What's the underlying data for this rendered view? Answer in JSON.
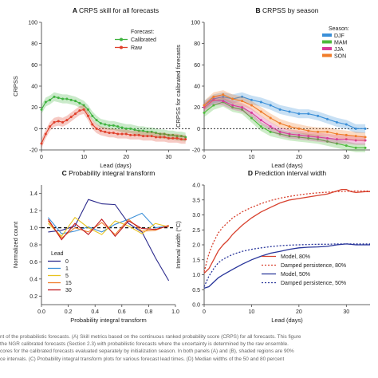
{
  "chart_data": [
    {
      "type": "line",
      "panel_letter": "A",
      "title": "CRPS skill for all forecasts",
      "xlabel": "Lead (days)",
      "ylabel": "CRPSS",
      "xlim": [
        0,
        35
      ],
      "ylim": [
        -20,
        100
      ],
      "xticks": [
        0,
        10,
        20,
        30
      ],
      "yticks": [
        -20,
        0,
        20,
        40,
        60,
        80,
        100
      ],
      "reference_line": 0,
      "legend_title": "Forecast:",
      "legend_position": "top-right",
      "series": [
        {
          "name": "Calibrated",
          "color": "#3fb33f",
          "x": [
            0,
            1,
            2,
            3,
            4,
            5,
            6,
            7,
            8,
            9,
            10,
            11,
            12,
            13,
            14,
            15,
            16,
            17,
            18,
            19,
            20,
            21,
            22,
            23,
            24,
            25,
            26,
            27,
            28,
            29,
            30,
            31,
            32,
            33,
            34
          ],
          "y": [
            18,
            25,
            27,
            30,
            29,
            28,
            28,
            27,
            26,
            24,
            22,
            18,
            12,
            8,
            5,
            4,
            3,
            3,
            2,
            1,
            0,
            0,
            -1,
            -2,
            -2,
            -3,
            -3,
            -4,
            -5,
            -5,
            -6,
            -6,
            -7,
            -7,
            -8
          ]
        },
        {
          "name": "Raw",
          "color": "#e0402b",
          "x": [
            0,
            1,
            2,
            3,
            4,
            5,
            6,
            7,
            8,
            9,
            10,
            11,
            12,
            13,
            14,
            15,
            16,
            17,
            18,
            19,
            20,
            21,
            22,
            23,
            24,
            25,
            26,
            27,
            28,
            29,
            30,
            31,
            32,
            33,
            34
          ],
          "y": [
            -14,
            -5,
            2,
            6,
            7,
            6,
            8,
            11,
            14,
            17,
            18,
            12,
            4,
            0,
            -2,
            -3,
            -4,
            -4,
            -5,
            -5,
            -5,
            -6,
            -6,
            -6,
            -7,
            -7,
            -7,
            -8,
            -8,
            -8,
            -9,
            -9,
            -9,
            -10,
            -10
          ]
        }
      ]
    },
    {
      "type": "line",
      "panel_letter": "B",
      "title": "CRPSS by season",
      "xlabel": "Lead (days)",
      "ylabel": "CRPSS for calibrated forecasts",
      "xlim": [
        0,
        35
      ],
      "ylim": [
        -20,
        100
      ],
      "xticks": [
        0,
        10,
        20,
        30
      ],
      "yticks": [
        -20,
        0,
        20,
        40,
        60,
        80,
        100
      ],
      "reference_line": 0,
      "legend_title": "Season:",
      "legend_position": "top-right",
      "series": [
        {
          "name": "DJF",
          "color": "#3a8fd8",
          "x": [
            0,
            2,
            4,
            6,
            8,
            10,
            12,
            14,
            16,
            18,
            20,
            22,
            24,
            26,
            28,
            30,
            32,
            34
          ],
          "y": [
            22,
            28,
            30,
            28,
            30,
            27,
            25,
            22,
            18,
            16,
            14,
            14,
            12,
            9,
            6,
            4,
            0,
            0
          ]
        },
        {
          "name": "MAM",
          "color": "#4cba3a",
          "x": [
            0,
            2,
            4,
            6,
            8,
            10,
            12,
            14,
            16,
            18,
            20,
            22,
            24,
            26,
            28,
            30,
            32,
            34
          ],
          "y": [
            15,
            22,
            25,
            20,
            18,
            10,
            2,
            -3,
            -5,
            -7,
            -8,
            -9,
            -10,
            -12,
            -14,
            -16,
            -18,
            -18
          ]
        },
        {
          "name": "JJA",
          "color": "#d83a9a",
          "x": [
            0,
            2,
            4,
            6,
            8,
            10,
            12,
            14,
            16,
            18,
            20,
            22,
            24,
            26,
            28,
            30,
            32,
            34
          ],
          "y": [
            20,
            27,
            26,
            22,
            20,
            15,
            8,
            2,
            -3,
            -5,
            -6,
            -7,
            -8,
            -9,
            -10,
            -10,
            -11,
            -11
          ]
        },
        {
          "name": "SON",
          "color": "#f07c2a",
          "x": [
            0,
            2,
            4,
            6,
            8,
            10,
            12,
            14,
            16,
            18,
            20,
            22,
            24,
            26,
            28,
            30,
            32,
            34
          ],
          "y": [
            22,
            30,
            32,
            28,
            26,
            22,
            16,
            10,
            5,
            2,
            0,
            -2,
            -3,
            -3,
            -5,
            -6,
            -7,
            -8
          ]
        }
      ]
    },
    {
      "type": "line",
      "panel_letter": "C",
      "title": "Probability integral transform",
      "xlabel": "Probability integral transform",
      "ylabel": "Normalized count",
      "xlim": [
        0,
        1
      ],
      "ylim": [
        0.1,
        1.5
      ],
      "xticks": [
        0.0,
        0.2,
        0.4,
        0.6,
        0.8,
        1.0
      ],
      "xtick_labels": [
        "0.0",
        "0.2",
        "0.4",
        "0.6",
        "0.8",
        "1.0"
      ],
      "yticks": [
        0.2,
        0.4,
        0.6,
        0.8,
        1.0,
        1.2,
        1.4
      ],
      "ytick_labels": [
        "0.2",
        "0.4",
        "0.6",
        "0.8",
        "1.0",
        "1.2",
        "1.4"
      ],
      "reference_line": 1.0,
      "legend_title": "Lead",
      "legend_position": "bottom-left",
      "series": [
        {
          "name": "0",
          "color": "#2b2a8c",
          "x": [
            0.05,
            0.15,
            0.25,
            0.35,
            0.45,
            0.55,
            0.65,
            0.75,
            0.85,
            0.95
          ],
          "y": [
            0.95,
            0.97,
            1.02,
            1.33,
            1.28,
            1.27,
            1.05,
            0.95,
            0.65,
            0.38
          ]
        },
        {
          "name": "1",
          "color": "#3a8fd8",
          "x": [
            0.05,
            0.15,
            0.25,
            0.35,
            0.45,
            0.55,
            0.65,
            0.75,
            0.85,
            0.95
          ],
          "y": [
            1.12,
            0.93,
            0.96,
            1.01,
            0.95,
            1.04,
            1.1,
            1.17,
            1.0,
            1.02
          ]
        },
        {
          "name": "5",
          "color": "#e8c320",
          "x": [
            0.05,
            0.15,
            0.25,
            0.35,
            0.45,
            0.55,
            0.65,
            0.75,
            0.85,
            0.95
          ],
          "y": [
            1.05,
            0.9,
            1.12,
            1.0,
            0.92,
            1.08,
            1.02,
            0.93,
            1.05,
            1.01
          ]
        },
        {
          "name": "15",
          "color": "#f07c2a",
          "x": [
            0.05,
            0.15,
            0.25,
            0.35,
            0.45,
            0.55,
            0.65,
            0.75,
            0.85,
            0.95
          ],
          "y": [
            1.08,
            0.88,
            1.0,
            0.95,
            1.06,
            0.92,
            1.1,
            0.96,
            0.97,
            1.03
          ]
        },
        {
          "name": "30",
          "color": "#c0191e",
          "x": [
            0.05,
            0.15,
            0.25,
            0.35,
            0.45,
            0.55,
            0.65,
            0.75,
            0.85,
            0.95
          ],
          "y": [
            1.1,
            0.86,
            1.05,
            0.92,
            1.1,
            0.9,
            1.08,
            0.99,
            0.98,
            1.02
          ]
        }
      ]
    },
    {
      "type": "line",
      "panel_letter": "D",
      "title": "Prediction interval width",
      "xlabel": "Lead (days)",
      "ylabel": "Interval width (°C)",
      "xlim": [
        0,
        35
      ],
      "ylim": [
        0,
        4.0
      ],
      "xticks": [
        0,
        10,
        20,
        30
      ],
      "yticks": [
        0.0,
        0.5,
        1.0,
        1.5,
        2.0,
        2.5,
        3.0,
        3.5,
        4.0
      ],
      "ytick_labels": [
        "0.0",
        "0.5",
        "1.0",
        "1.5",
        "2.0",
        "2.5",
        "3.0",
        "3.5",
        "4.0"
      ],
      "legend_position": "bottom-right",
      "series": [
        {
          "name": "Model, 80%",
          "color": "#d8412e",
          "dash": false,
          "x": [
            0,
            1,
            2,
            3,
            4,
            5,
            6,
            8,
            10,
            12,
            14,
            16,
            18,
            20,
            22,
            24,
            26,
            28,
            29,
            30,
            31,
            32,
            34,
            35
          ],
          "y": [
            1.05,
            1.2,
            1.5,
            1.8,
            2.0,
            2.15,
            2.35,
            2.65,
            2.9,
            3.1,
            3.25,
            3.4,
            3.5,
            3.55,
            3.6,
            3.65,
            3.7,
            3.8,
            3.85,
            3.85,
            3.78,
            3.75,
            3.78,
            3.78
          ]
        },
        {
          "name": "Damped persistence, 80%",
          "color": "#d8412e",
          "dash": true,
          "x": [
            0,
            1,
            2,
            3,
            4,
            6,
            8,
            10,
            12,
            14,
            16,
            18,
            20,
            22,
            24,
            26,
            28,
            30,
            32,
            35
          ],
          "y": [
            1.1,
            1.7,
            2.1,
            2.4,
            2.6,
            2.9,
            3.1,
            3.25,
            3.38,
            3.48,
            3.56,
            3.62,
            3.67,
            3.71,
            3.74,
            3.76,
            3.78,
            3.79,
            3.8,
            3.8
          ]
        },
        {
          "name": "Model, 50%",
          "color": "#27349a",
          "dash": false,
          "x": [
            0,
            1,
            2,
            3,
            4,
            6,
            8,
            10,
            12,
            14,
            16,
            18,
            20,
            22,
            24,
            26,
            28,
            30,
            32,
            34,
            35
          ],
          "y": [
            0.55,
            0.6,
            0.75,
            0.9,
            1.0,
            1.18,
            1.35,
            1.5,
            1.62,
            1.72,
            1.78,
            1.85,
            1.9,
            1.92,
            1.93,
            1.95,
            2.0,
            2.03,
            2.0,
            2.0,
            2.0
          ]
        },
        {
          "name": "Damped persistence, 50%",
          "color": "#27349a",
          "dash": true,
          "x": [
            0,
            1,
            2,
            3,
            4,
            6,
            8,
            10,
            12,
            14,
            16,
            18,
            20,
            22,
            24,
            26,
            28,
            30,
            32,
            35
          ],
          "y": [
            0.6,
            0.95,
            1.2,
            1.4,
            1.52,
            1.68,
            1.78,
            1.85,
            1.9,
            1.94,
            1.97,
            1.99,
            2.0,
            2.01,
            2.02,
            2.02,
            2.03,
            2.03,
            2.03,
            2.03
          ]
        }
      ]
    }
  ],
  "caption": [
    "nt of the probabilistic forecasts. (A) Skill metrics based on the continuous ranked probability score (CRPS) for all forecasts. This figure",
    "the NGR calibrated forecasts (Section 2.3) with probabilistic forecasts where the uncertainty is determined by the raw ensemble.",
    "cores for the calibrated forecasts evaluated separately by initialization season. In both panels (A) and (B), shaded regions are 90%",
    "ce intervals. (C) Probability integral transform plots for various forecast lead times. (D) Median widths of the 50 and 80 percent"
  ]
}
